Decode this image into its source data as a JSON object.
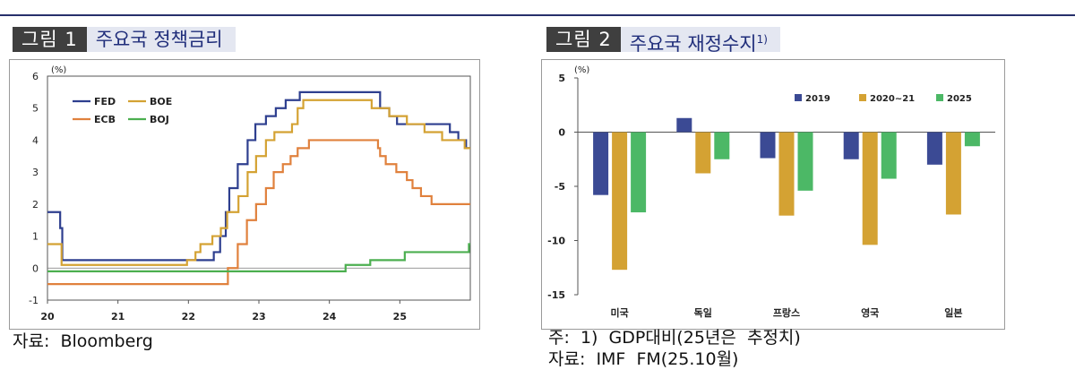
{
  "figure1": {
    "number": "그림 1",
    "title": "주요국 정책금리",
    "source": "자료:  Bloomberg",
    "chart_data": {
      "type": "line",
      "ylabel": "(%)",
      "ylim": [
        -1,
        6
      ],
      "yticks": [
        "6",
        "5",
        "4",
        "3",
        "2",
        "1",
        "0",
        "-1"
      ],
      "xticks": [
        "20",
        "21",
        "22",
        "23",
        "24",
        "25"
      ],
      "xlim": [
        2020,
        2026
      ],
      "legend_position": "top-left",
      "series": [
        {
          "name": "FED",
          "color": "#2e3f8f",
          "points": [
            [
              2020.0,
              1.75
            ],
            [
              2020.15,
              1.75
            ],
            [
              2020.18,
              1.25
            ],
            [
              2020.21,
              0.25
            ],
            [
              2022.2,
              0.25
            ],
            [
              2022.36,
              0.5
            ],
            [
              2022.45,
              1.0
            ],
            [
              2022.53,
              1.75
            ],
            [
              2022.58,
              2.5
            ],
            [
              2022.7,
              3.25
            ],
            [
              2022.84,
              4.0
            ],
            [
              2022.95,
              4.5
            ],
            [
              2023.1,
              4.75
            ],
            [
              2023.24,
              5.0
            ],
            [
              2023.38,
              5.25
            ],
            [
              2023.58,
              5.5
            ],
            [
              2024.71,
              5.5
            ],
            [
              2024.72,
              5.0
            ],
            [
              2024.85,
              4.75
            ],
            [
              2024.96,
              4.5
            ],
            [
              2025.71,
              4.25
            ],
            [
              2025.83,
              4.0
            ],
            [
              2025.94,
              3.75
            ],
            [
              2026.0,
              3.75
            ]
          ]
        },
        {
          "name": "BOE",
          "color": "#d4a233",
          "points": [
            [
              2020.0,
              0.75
            ],
            [
              2020.18,
              0.75
            ],
            [
              2020.2,
              0.1
            ],
            [
              2021.96,
              0.1
            ],
            [
              2021.98,
              0.25
            ],
            [
              2022.1,
              0.5
            ],
            [
              2022.17,
              0.75
            ],
            [
              2022.34,
              1.0
            ],
            [
              2022.46,
              1.25
            ],
            [
              2022.55,
              1.75
            ],
            [
              2022.71,
              2.25
            ],
            [
              2022.84,
              3.0
            ],
            [
              2022.96,
              3.5
            ],
            [
              2023.1,
              4.0
            ],
            [
              2023.22,
              4.25
            ],
            [
              2023.47,
              4.5
            ],
            [
              2023.55,
              5.0
            ],
            [
              2023.63,
              5.25
            ],
            [
              2024.58,
              5.25
            ],
            [
              2024.6,
              5.0
            ],
            [
              2024.85,
              4.75
            ],
            [
              2025.1,
              4.5
            ],
            [
              2025.35,
              4.25
            ],
            [
              2025.6,
              4.0
            ],
            [
              2025.92,
              3.75
            ],
            [
              2026.0,
              3.75
            ]
          ]
        },
        {
          "name": "ECB",
          "color": "#e0813d",
          "points": [
            [
              2020.0,
              -0.5
            ],
            [
              2022.54,
              -0.5
            ],
            [
              2022.56,
              0.0
            ],
            [
              2022.7,
              0.75
            ],
            [
              2022.83,
              1.5
            ],
            [
              2022.96,
              2.0
            ],
            [
              2023.1,
              2.5
            ],
            [
              2023.21,
              3.0
            ],
            [
              2023.34,
              3.25
            ],
            [
              2023.45,
              3.5
            ],
            [
              2023.55,
              3.75
            ],
            [
              2023.71,
              4.0
            ],
            [
              2024.44,
              4.0
            ],
            [
              2024.69,
              3.75
            ],
            [
              2024.72,
              3.5
            ],
            [
              2024.8,
              3.25
            ],
            [
              2024.95,
              3.0
            ],
            [
              2025.1,
              2.75
            ],
            [
              2025.18,
              2.5
            ],
            [
              2025.3,
              2.25
            ],
            [
              2025.45,
              2.0
            ],
            [
              2026.0,
              2.0
            ]
          ]
        },
        {
          "name": "BOJ",
          "color": "#4caf50",
          "points": [
            [
              2020.0,
              -0.1
            ],
            [
              2024.21,
              -0.1
            ],
            [
              2024.23,
              0.1
            ],
            [
              2024.58,
              0.25
            ],
            [
              2025.07,
              0.5
            ],
            [
              2025.96,
              0.5
            ],
            [
              2025.98,
              0.75
            ],
            [
              2026.0,
              0.75
            ]
          ]
        }
      ]
    }
  },
  "figure2": {
    "number": "그림 2",
    "title": "주요국 재정수지",
    "title_sup": "1)",
    "note": "주:  1)  GDP대비(25년은  추정치)",
    "source": "자료:  IMF  FM(25.10월)",
    "chart_data": {
      "type": "bar",
      "ylabel": "(%)",
      "ylim": [
        -15,
        5
      ],
      "yticks": [
        "5",
        "0",
        "-5",
        "-10",
        "-15"
      ],
      "categories": [
        "미국",
        "독일",
        "프랑스",
        "영국",
        "일본"
      ],
      "legend_position": "top-right",
      "series": [
        {
          "name": "2019",
          "color": "#3b4a94",
          "values": [
            -5.8,
            1.3,
            -2.4,
            -2.5,
            -3.0
          ]
        },
        {
          "name": "2020~21",
          "color": "#d4a233",
          "values": [
            -12.7,
            -3.8,
            -7.7,
            -10.4,
            -7.6
          ]
        },
        {
          "name": "2025",
          "color": "#4cb866",
          "values": [
            -7.4,
            -2.5,
            -5.4,
            -4.3,
            -1.3
          ]
        }
      ]
    }
  }
}
